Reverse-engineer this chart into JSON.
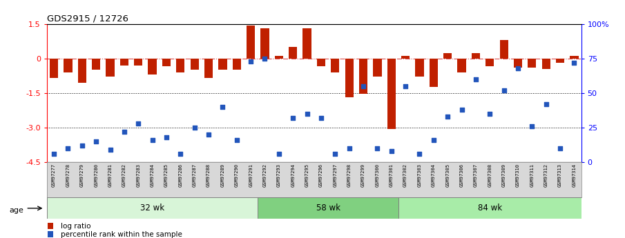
{
  "title": "GDS2915 / 12726",
  "samples": [
    "GSM97277",
    "GSM97278",
    "GSM97279",
    "GSM97280",
    "GSM97281",
    "GSM97282",
    "GSM97283",
    "GSM97284",
    "GSM97285",
    "GSM97286",
    "GSM97287",
    "GSM97288",
    "GSM97289",
    "GSM97290",
    "GSM97291",
    "GSM97292",
    "GSM97293",
    "GSM97294",
    "GSM97295",
    "GSM97296",
    "GSM97297",
    "GSM97298",
    "GSM97299",
    "GSM97300",
    "GSM97301",
    "GSM97302",
    "GSM97303",
    "GSM97304",
    "GSM97305",
    "GSM97306",
    "GSM97307",
    "GSM97308",
    "GSM97309",
    "GSM97310",
    "GSM97311",
    "GSM97312",
    "GSM97313",
    "GSM97314"
  ],
  "log_ratio": [
    -0.85,
    -0.6,
    -1.05,
    -0.5,
    -0.8,
    -0.3,
    -0.3,
    -0.7,
    -0.35,
    -0.6,
    -0.5,
    -0.85,
    -0.5,
    -0.5,
    1.42,
    1.32,
    0.1,
    0.5,
    1.3,
    -0.35,
    -0.6,
    -1.7,
    -1.55,
    -0.8,
    -3.08,
    0.1,
    -0.8,
    -1.25,
    0.22,
    -0.6,
    0.22,
    -0.35,
    0.8,
    -0.4,
    -0.4,
    -0.45,
    -0.2,
    0.1
  ],
  "percentile": [
    6,
    10,
    12,
    15,
    9,
    22,
    28,
    16,
    18,
    6,
    25,
    20,
    40,
    16,
    73,
    75,
    6,
    32,
    35,
    32,
    6,
    10,
    55,
    10,
    8,
    55,
    6,
    16,
    33,
    38,
    60,
    35,
    52,
    68,
    26,
    42,
    10,
    72
  ],
  "groups": [
    {
      "label": "32 wk",
      "start": 0,
      "end": 15,
      "color": "#d8f5d8"
    },
    {
      "label": "58 wk",
      "start": 15,
      "end": 25,
      "color": "#80d080"
    },
    {
      "label": "84 wk",
      "start": 25,
      "end": 38,
      "color": "#a8eca8"
    }
  ],
  "ylim_left": [
    -4.5,
    1.5
  ],
  "ylim_right": [
    0,
    100
  ],
  "yticks_left": [
    1.5,
    0.0,
    -1.5,
    -3.0,
    -4.5
  ],
  "yticks_right": [
    0,
    25,
    50,
    75,
    100
  ],
  "bar_color": "#c02000",
  "dot_color": "#2255bb",
  "background_color": "#ffffff",
  "age_label": "age",
  "legend_log_ratio": "log ratio",
  "legend_percentile": "percentile rank within the sample",
  "tick_bg_color": "#d8d8d8"
}
